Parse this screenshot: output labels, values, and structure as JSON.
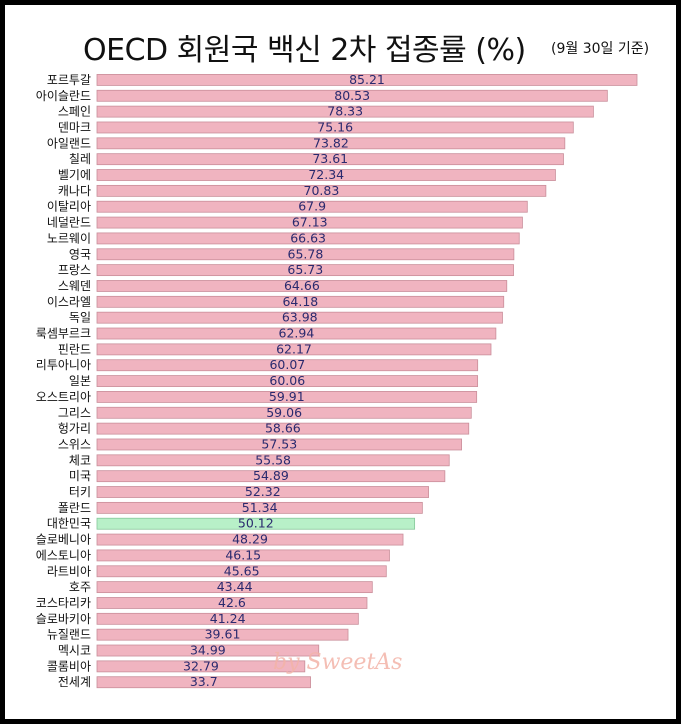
{
  "chart_data": {
    "type": "bar",
    "orientation": "horizontal",
    "title": "OECD 회원국 백신 2차 접종률 (%)",
    "subtitle": "(9월 30일 기준)",
    "xlim": [
      0,
      90
    ],
    "highlight": "대한민국",
    "colors": {
      "bar": "#f0b4c0",
      "bar_border": "#c98e9a",
      "highlight": "#b8f0c8",
      "highlight_border": "#86c79a"
    },
    "categories": [
      "포르투갈",
      "아이슬란드",
      "스페인",
      "덴마크",
      "아일랜드",
      "칠레",
      "벨기에",
      "캐나다",
      "이탈리아",
      "네덜란드",
      "노르웨이",
      "영국",
      "프랑스",
      "스웨덴",
      "이스라엘",
      "독일",
      "룩셈부르크",
      "핀란드",
      "리투아니아",
      "일본",
      "오스트리아",
      "그리스",
      "헝가리",
      "스위스",
      "체코",
      "미국",
      "터키",
      "폴란드",
      "대한민국",
      "슬로베니아",
      "에스토니아",
      "라트비아",
      "호주",
      "코스타리카",
      "슬로바키아",
      "뉴질랜드",
      "멕시코",
      "콜롬비아",
      "전세계"
    ],
    "values": [
      85.21,
      80.53,
      78.33,
      75.16,
      73.82,
      73.61,
      72.34,
      70.83,
      67.9,
      67.13,
      66.63,
      65.78,
      65.73,
      64.66,
      64.18,
      63.98,
      62.94,
      62.17,
      60.07,
      60.06,
      59.91,
      59.06,
      58.66,
      57.53,
      55.58,
      54.89,
      52.32,
      51.34,
      50.12,
      48.29,
      46.15,
      45.65,
      43.44,
      42.6,
      41.24,
      39.61,
      34.99,
      32.79,
      33.7
    ],
    "value_labels": [
      "85.21",
      "80.53",
      "78.33",
      "75.16",
      "73.82",
      "73.61",
      "72.34",
      "70.83",
      "67.9",
      "67.13",
      "66.63",
      "65.78",
      "65.73",
      "64.66",
      "64.18",
      "63.98",
      "62.94",
      "62.17",
      "60.07",
      "60.06",
      "59.91",
      "59.06",
      "58.66",
      "57.53",
      "55.58",
      "54.89",
      "52.32",
      "51.34",
      "50.12",
      "48.29",
      "46.15",
      "45.65",
      "43.44",
      "42.6",
      "41.24",
      "39.61",
      "34.99",
      "32.79",
      "33.7"
    ]
  },
  "watermark": "by SweetAs"
}
